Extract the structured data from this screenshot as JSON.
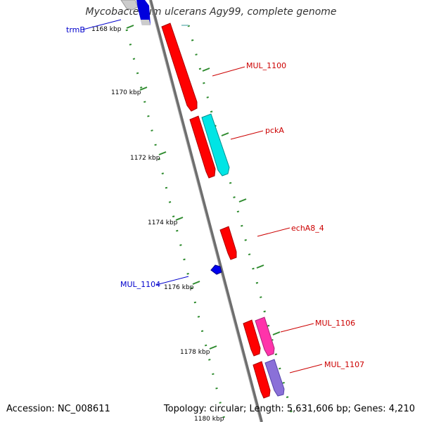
{
  "title": "Mycobacterium ulcerans Agy99, complete genome",
  "footer": {
    "accession": "Accession: NC_008611",
    "summary": "Topology: circular; Length: 5,631,606 bp; Genes: 4,210"
  },
  "colors": {
    "backbone": "#8c8c8c",
    "tick": "#2e8b2e",
    "forward_cds": "#ff0000",
    "reverse_cds": "#ff0000",
    "rna": "#0000ff",
    "pck": "#00e5e5",
    "magenta": "#ff33aa",
    "violet": "#8a70d8",
    "gray_feature": "#cccccc",
    "label_red": "#cc0000",
    "label_blue": "#0000cc"
  },
  "ticks": {
    "labels": [
      "1168 kbp",
      "1170 kbp",
      "1172 kbp",
      "1174 kbp",
      "1176 kbp",
      "1178 kbp",
      "1180 kbp"
    ]
  },
  "gene_labels": {
    "trmB": "trmB",
    "MUL_1100": "MUL_1100",
    "pckA": "pckA",
    "echA8_4": "echA8_4",
    "MUL_1104": "MUL_1104",
    "MUL_1106": "MUL_1106",
    "MUL_1107": "MUL_1107"
  }
}
